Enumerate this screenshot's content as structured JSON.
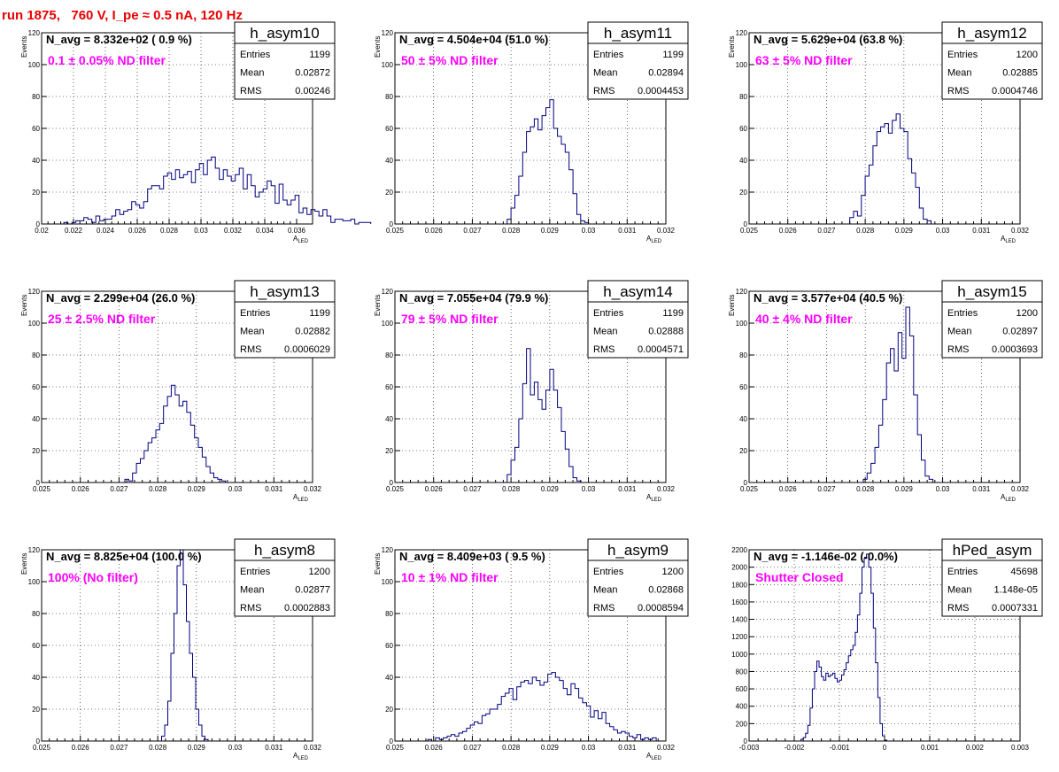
{
  "header": {
    "title": "run 1875,   760 V, I_pe ≈ 0.5 nA, 120 Hz"
  },
  "stats_labels": {
    "entries": "Entries",
    "mean": "Mean",
    "rms": "RMS"
  },
  "chart_data": [
    {
      "type": "bar",
      "name": "h_asym10",
      "navg": "N_avg = 8.332e+02 ( 0.9 %)",
      "filter": "0.1 ± 0.05% ND filter",
      "entries": "1199",
      "mean": "0.02872",
      "rms": "0.00246",
      "xlim": [
        0.02,
        0.037
      ],
      "ylim": [
        0,
        120
      ],
      "xticks": [
        0.02,
        0.022,
        0.024,
        0.026,
        0.028,
        0.03,
        0.032,
        0.034,
        0.036
      ],
      "xticklabels": [
        "0.02",
        "0.022",
        "0.024",
        "0.026",
        "0.028",
        "0.03",
        "0.032",
        "0.034",
        "0.036"
      ],
      "yticks": [
        0,
        20,
        40,
        60,
        80,
        100,
        120
      ],
      "yticklabels": [
        "0",
        "20",
        "40",
        "60",
        "80",
        "100",
        "120"
      ],
      "xlabel": "A",
      "xlabel_sub": "LED",
      "ylabel": "Events",
      "bin_start": 0.0214,
      "bin_width": 0.00025,
      "values": [
        1,
        0,
        1,
        2,
        2,
        4,
        3,
        1,
        5,
        2,
        3,
        3,
        5,
        9,
        6,
        8,
        9,
        14,
        12,
        10,
        14,
        22,
        24,
        24,
        22,
        30,
        32,
        28,
        34,
        29,
        31,
        33,
        26,
        34,
        38,
        31,
        40,
        42,
        35,
        28,
        34,
        30,
        27,
        31,
        35,
        22,
        31,
        24,
        17,
        20,
        22,
        27,
        24,
        13,
        25,
        15,
        12,
        15,
        18,
        7,
        10,
        6,
        9,
        8,
        5,
        9,
        5,
        1,
        3,
        3,
        2,
        2,
        3,
        0,
        1,
        1,
        1
      ]
    },
    {
      "type": "bar",
      "name": "h_asym11",
      "navg": "N_avg = 4.504e+04 (51.0 %)",
      "filter": "50 ± 5% ND filter",
      "entries": "1199",
      "mean": "0.02894",
      "rms": "0.0004453",
      "xlim": [
        0.025,
        0.032
      ],
      "ylim": [
        0,
        120
      ],
      "xticks": [
        0.025,
        0.026,
        0.027,
        0.028,
        0.029,
        0.03,
        0.031,
        0.032
      ],
      "xticklabels": [
        "0.025",
        "0.026",
        "0.027",
        "0.028",
        "0.029",
        "0.03",
        "0.031",
        "0.032"
      ],
      "yticks": [
        0,
        20,
        40,
        60,
        80,
        100,
        120
      ],
      "yticklabels": [
        "0",
        "20",
        "40",
        "60",
        "80",
        "100",
        "120"
      ],
      "xlabel": "A",
      "xlabel_sub": "LED",
      "ylabel": "Events",
      "bin_start": 0.0279,
      "bin_width": 0.0001,
      "values": [
        3,
        10,
        18,
        30,
        45,
        58,
        61,
        66,
        59,
        68,
        73,
        78,
        60,
        55,
        50,
        45,
        34,
        19,
        6,
        2,
        1
      ]
    },
    {
      "type": "bar",
      "name": "h_asym12",
      "navg": "N_avg = 5.629e+04 (63.8 %)",
      "filter": "63 ± 5% ND filter",
      "entries": "1200",
      "mean": "0.02885",
      "rms": "0.0004746",
      "xlim": [
        0.025,
        0.032
      ],
      "ylim": [
        0,
        120
      ],
      "xticks": [
        0.025,
        0.026,
        0.027,
        0.028,
        0.029,
        0.03,
        0.031,
        0.032
      ],
      "xticklabels": [
        "0.025",
        "0.026",
        "0.027",
        "0.028",
        "0.029",
        "0.03",
        "0.031",
        "0.032"
      ],
      "yticks": [
        0,
        20,
        40,
        60,
        80,
        100,
        120
      ],
      "yticklabels": [
        "0",
        "20",
        "40",
        "60",
        "80",
        "100",
        "120"
      ],
      "xlabel": "A",
      "xlabel_sub": "LED",
      "ylabel": "Events",
      "bin_start": 0.0276,
      "bin_width": 0.0001,
      "values": [
        4,
        8,
        5,
        18,
        30,
        37,
        49,
        58,
        61,
        63,
        57,
        65,
        69,
        60,
        58,
        41,
        32,
        23,
        10,
        3,
        2
      ]
    },
    {
      "type": "bar",
      "name": "h_asym13",
      "navg": "N_avg = 2.299e+04 (26.0 %)",
      "filter": "25 ± 2.5% ND filter",
      "entries": "1199",
      "mean": "0.02882",
      "rms": "0.0006029",
      "xlim": [
        0.025,
        0.032
      ],
      "ylim": [
        0,
        120
      ],
      "xticks": [
        0.025,
        0.026,
        0.027,
        0.028,
        0.029,
        0.03,
        0.031,
        0.032
      ],
      "xticklabels": [
        "0.025",
        "0.026",
        "0.027",
        "0.028",
        "0.029",
        "0.03",
        "0.031",
        "0.032"
      ],
      "yticks": [
        0,
        20,
        40,
        60,
        80,
        100,
        120
      ],
      "yticklabels": [
        "0",
        "20",
        "40",
        "60",
        "80",
        "100",
        "120"
      ],
      "xlabel": "A",
      "xlabel_sub": "LED",
      "ylabel": "Events",
      "bin_start": 0.02715,
      "bin_width": 0.0001,
      "values": [
        2,
        1,
        6,
        12,
        15,
        20,
        25,
        28,
        33,
        37,
        48,
        54,
        61,
        55,
        48,
        51,
        44,
        36,
        28,
        22,
        16,
        10,
        6,
        3,
        2,
        1
      ]
    },
    {
      "type": "bar",
      "name": "h_asym14",
      "navg": "N_avg = 7.055e+04 (79.9 %)",
      "filter": "79 ± 5% ND filter",
      "entries": "1199",
      "mean": "0.02888",
      "rms": "0.0004571",
      "xlim": [
        0.025,
        0.032
      ],
      "ylim": [
        0,
        120
      ],
      "xticks": [
        0.025,
        0.026,
        0.027,
        0.028,
        0.029,
        0.03,
        0.031,
        0.032
      ],
      "xticklabels": [
        "0.025",
        "0.026",
        "0.027",
        "0.028",
        "0.029",
        "0.03",
        "0.031",
        "0.032"
      ],
      "yticks": [
        0,
        20,
        40,
        60,
        80,
        100,
        120
      ],
      "yticklabels": [
        "0",
        "20",
        "40",
        "60",
        "80",
        "100",
        "120"
      ],
      "xlabel": "A",
      "xlabel_sub": "LED",
      "ylabel": "Events",
      "bin_start": 0.0279,
      "bin_width": 0.0001,
      "values": [
        5,
        14,
        22,
        40,
        62,
        84,
        55,
        63,
        52,
        46,
        58,
        71,
        58,
        47,
        32,
        21,
        10,
        3,
        1
      ]
    },
    {
      "type": "bar",
      "name": "h_asym15",
      "navg": "N_avg = 3.577e+04 (40.5 %)",
      "filter": "40 ± 4% ND filter",
      "entries": "1200",
      "mean": "0.02897",
      "rms": "0.0003693",
      "xlim": [
        0.025,
        0.032
      ],
      "ylim": [
        0,
        120
      ],
      "xticks": [
        0.025,
        0.026,
        0.027,
        0.028,
        0.029,
        0.03,
        0.031,
        0.032
      ],
      "xticklabels": [
        "0.025",
        "0.026",
        "0.027",
        "0.028",
        "0.029",
        "0.03",
        "0.031",
        "0.032"
      ],
      "yticks": [
        0,
        20,
        40,
        60,
        80,
        100,
        120
      ],
      "yticklabels": [
        "0",
        "20",
        "40",
        "60",
        "80",
        "100",
        "120"
      ],
      "xlabel": "A",
      "xlabel_sub": "LED",
      "ylabel": "Events",
      "bin_start": 0.02795,
      "bin_width": 0.0001,
      "values": [
        2,
        6,
        12,
        22,
        36,
        52,
        75,
        84,
        70,
        94,
        78,
        110,
        92,
        55,
        30,
        14,
        4,
        2
      ]
    },
    {
      "type": "bar",
      "name": "h_asym8",
      "navg": "N_avg = 8.825e+04 (100.0 %)",
      "filter": "100% (No filter)",
      "entries": "1200",
      "mean": "0.02877",
      "rms": "0.0002883",
      "xlim": [
        0.025,
        0.032
      ],
      "ylim": [
        0,
        120
      ],
      "xticks": [
        0.025,
        0.026,
        0.027,
        0.028,
        0.029,
        0.03,
        0.031,
        0.032
      ],
      "xticklabels": [
        "0.025",
        "0.026",
        "0.027",
        "0.028",
        "0.029",
        "0.03",
        "0.031",
        "0.032"
      ],
      "yticks": [
        0,
        20,
        40,
        60,
        80,
        100,
        120
      ],
      "yticklabels": [
        "0",
        "20",
        "40",
        "60",
        "80",
        "100",
        "120"
      ],
      "xlabel": "A",
      "xlabel_sub": "LED",
      "ylabel": "Events",
      "bin_start": 0.0281,
      "bin_width": 8e-05,
      "values": [
        3,
        10,
        25,
        55,
        80,
        110,
        125,
        98,
        75,
        55,
        40,
        20,
        10,
        3,
        1
      ]
    },
    {
      "type": "bar",
      "name": "h_asym9",
      "navg": "N_avg = 8.409e+03 ( 9.5 %)",
      "filter": "10 ± 1% ND filter",
      "entries": "1200",
      "mean": "0.02868",
      "rms": "0.0008594",
      "xlim": [
        0.025,
        0.032
      ],
      "ylim": [
        0,
        120
      ],
      "xticks": [
        0.025,
        0.026,
        0.027,
        0.028,
        0.029,
        0.03,
        0.031,
        0.032
      ],
      "xticklabels": [
        "0.025",
        "0.026",
        "0.027",
        "0.028",
        "0.029",
        "0.03",
        "0.031",
        "0.032"
      ],
      "yticks": [
        0,
        20,
        40,
        60,
        80,
        100,
        120
      ],
      "yticklabels": [
        "0",
        "20",
        "40",
        "60",
        "80",
        "100",
        "120"
      ],
      "xlabel": "A",
      "xlabel_sub": "LED",
      "ylabel": "Events",
      "bin_start": 0.02585,
      "bin_width": 0.0001,
      "values": [
        1,
        0,
        2,
        1,
        2,
        3,
        4,
        3,
        5,
        6,
        8,
        10,
        12,
        11,
        16,
        17,
        20,
        20,
        23,
        28,
        30,
        33,
        26,
        34,
        37,
        38,
        36,
        40,
        38,
        35,
        37,
        42,
        43,
        40,
        38,
        33,
        29,
        36,
        33,
        27,
        24,
        22,
        15,
        19,
        14,
        18,
        11,
        9,
        7,
        5,
        6,
        5,
        3,
        2,
        4,
        1,
        2,
        1,
        2
      ]
    },
    {
      "type": "bar",
      "name": "hPed_asym",
      "navg": "N_avg = -1.146e-02 (-0.0%)",
      "filter": "Shutter Closed",
      "entries": "45698",
      "mean": "1.148e-05",
      "rms": "0.0007331",
      "xlim": [
        -0.003,
        0.003
      ],
      "ylim": [
        0,
        2200
      ],
      "xticks": [
        -0.003,
        -0.002,
        -0.001,
        0,
        0.001,
        0.002,
        0.003
      ],
      "xticklabels": [
        "-0.003",
        "-0.002",
        "-0.001",
        "0",
        "0.001",
        "0.002",
        "0.003"
      ],
      "yticks": [
        0,
        200,
        400,
        600,
        800,
        1000,
        1200,
        1400,
        1600,
        1800,
        2000,
        2200
      ],
      "yticklabels": [
        "0",
        "200",
        "400",
        "600",
        "800",
        "1000",
        "1200",
        "1400",
        "1600",
        "1800",
        "2000",
        "2200"
      ],
      "xlabel": "",
      "xlabel_sub": "",
      "ylabel": "",
      "bin_start": -0.00185,
      "bin_width": 5e-05,
      "values": [
        20,
        40,
        90,
        180,
        380,
        600,
        800,
        920,
        850,
        740,
        700,
        780,
        740,
        760,
        780,
        720,
        680,
        700,
        760,
        820,
        900,
        980,
        1050,
        1100,
        1250,
        1450,
        1700,
        2000,
        2100,
        2150,
        2000,
        1700,
        1300,
        900,
        500,
        200,
        60,
        10
      ]
    }
  ]
}
